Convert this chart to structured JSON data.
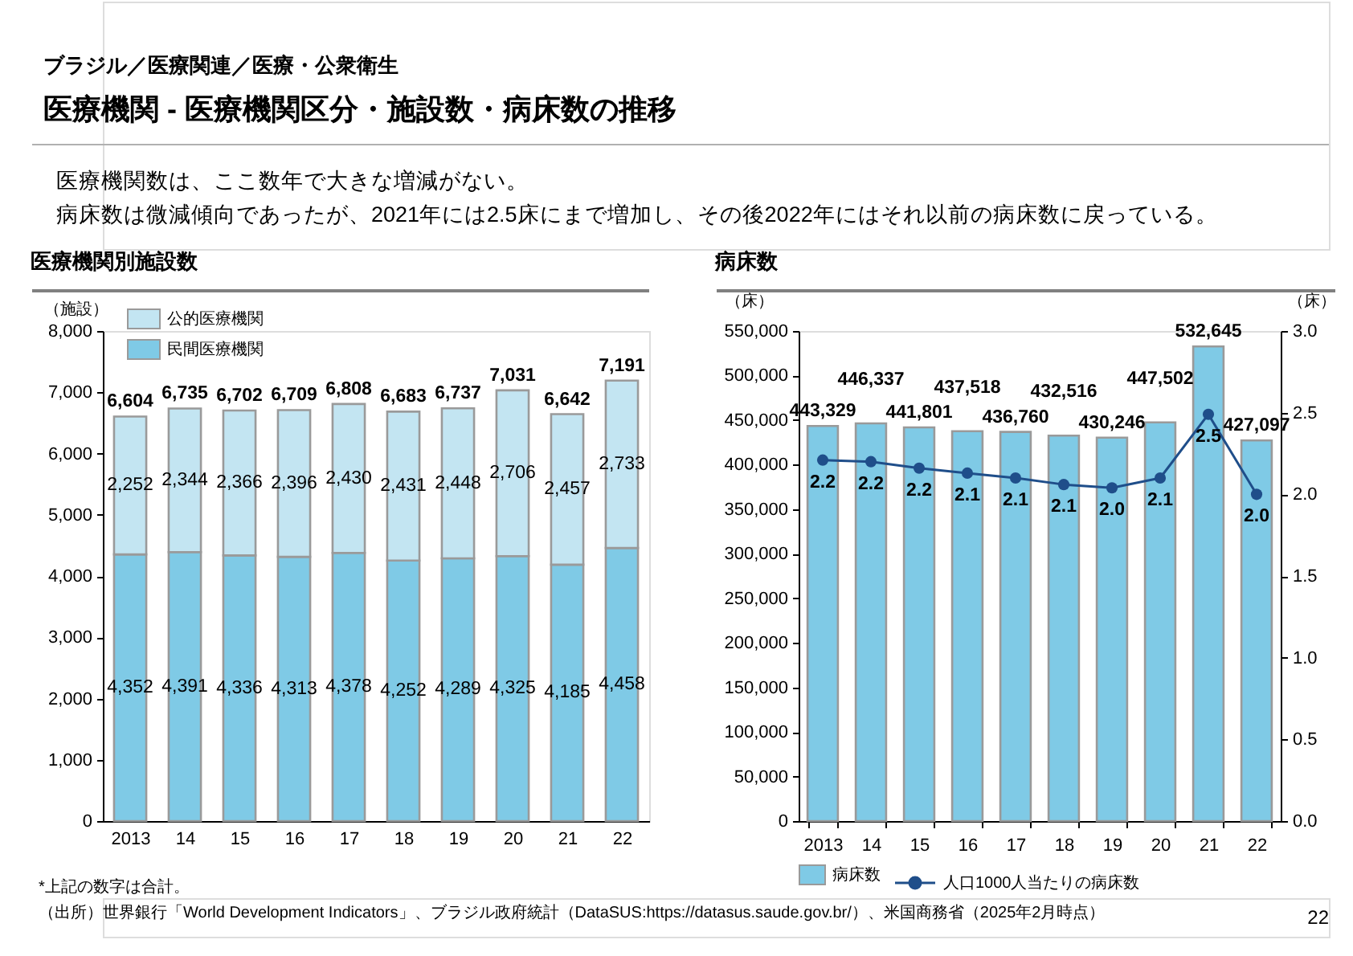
{
  "chart_data": [
    {
      "type": "bar",
      "stacked": true,
      "title": "医療機関別施設数",
      "ylabel": "（施設）",
      "categories": [
        "2013",
        "14",
        "15",
        "16",
        "17",
        "18",
        "19",
        "20",
        "21",
        "22"
      ],
      "series": [
        {
          "name": "民間医療機関",
          "color": "#7fcae6",
          "values": [
            4352,
            4391,
            4336,
            4313,
            4378,
            4252,
            4289,
            4325,
            4185,
            4458
          ],
          "value_labels": [
            "4,352",
            "4,391",
            "4,336",
            "4,313",
            "4,378",
            "4,252",
            "4,289",
            "4,325",
            "4,185",
            "4,458"
          ]
        },
        {
          "name": "公的医療機関",
          "color": "#c3e5f2",
          "values": [
            2252,
            2344,
            2366,
            2396,
            2430,
            2431,
            2448,
            2706,
            2457,
            2733
          ],
          "value_labels": [
            "2,252",
            "2,344",
            "2,366",
            "2,396",
            "2,430",
            "2,431",
            "2,448",
            "2,706",
            "2,457",
            "2,733"
          ]
        }
      ],
      "totals": [
        "6,604",
        "6,735",
        "6,702",
        "6,709",
        "6,808",
        "6,683",
        "6,737",
        "7,031",
        "6,642",
        "7,191"
      ],
      "ylim": [
        0,
        8000
      ],
      "yticks": [
        0,
        {
          "value": 1000,
          "label": "1,000"
        },
        {
          "value": 2000,
          "label": "2,000"
        },
        {
          "value": 3000,
          "label": "3,000"
        },
        {
          "value": 4000,
          "label": "4,000"
        },
        {
          "value": 5000,
          "label": "5,000"
        },
        {
          "value": 6000,
          "label": "6,000"
        },
        {
          "value": 7000,
          "label": "7,000"
        },
        {
          "value": 8000,
          "label": "8,000"
        }
      ],
      "legend": "top left",
      "annotations": [
        "ブラジル／医療関連／医療・公衆衛生",
        "医療機関 - 医療機関区分・施設数・病床数の推移",
        "医療機関数は、ここ数年で大きな増減がない。",
        "病床数は微減傾向であったが、2021年には2.5床にまで増加し、その後2022年にはそれ以前の病床数に戻っている。",
        "*上記の数字は合計。"
      ]
    },
    {
      "type": "bar",
      "title": "病床数",
      "ylabel": "（床）",
      "y2label": "（床）",
      "categories": [
        "2013",
        "14",
        "15",
        "16",
        "17",
        "18",
        "19",
        "20",
        "21",
        "22"
      ],
      "series": [
        {
          "name": "病床数",
          "color": "#7fcae6",
          "values": [
            443329,
            446337,
            441801,
            437518,
            436760,
            432516,
            430246,
            447502,
            532645,
            427097
          ],
          "value_labels": [
            "443,329",
            "446,337",
            "441,801",
            "437,518",
            "436,760",
            "432,516",
            "430,246",
            "447,502",
            "532,645",
            "427,097"
          ]
        },
        {
          "name": "人口1000人当たりの病床数",
          "type": "line",
          "axis": "y2",
          "color": "#1f4e8a",
          "values": [
            2.21,
            2.2,
            2.16,
            2.13,
            2.1,
            2.06,
            2.04,
            2.1,
            2.49,
            2.0
          ],
          "value_labels": [
            "2.2",
            "2.2",
            "2.2",
            "2.1",
            "2.1",
            "2.1",
            "2.0",
            "2.1",
            "2.5",
            "2.0"
          ]
        }
      ],
      "ylim": [
        0,
        550000
      ],
      "yticks": [
        0,
        {
          "value": 50000,
          "label": "50,000"
        },
        {
          "value": 100000,
          "label": "100,000"
        },
        {
          "value": 150000,
          "label": "150,000"
        },
        {
          "value": 200000,
          "label": "200,000"
        },
        {
          "value": 250000,
          "label": "250,000"
        },
        {
          "value": 300000,
          "label": "300,000"
        },
        {
          "value": 350000,
          "label": "350,000"
        },
        {
          "value": 400000,
          "label": "400,000"
        },
        {
          "value": 450000,
          "label": "450,000"
        },
        {
          "value": 500000,
          "label": "500,000"
        },
        {
          "value": 550000,
          "label": "550,000"
        }
      ],
      "y2lim": [
        0,
        3
      ],
      "y2ticks": [
        {
          "value": 0,
          "label": "0.0"
        },
        0.5,
        {
          "value": 1,
          "label": "1.0"
        },
        1.5,
        {
          "value": 2,
          "label": "2.0"
        },
        2.5,
        {
          "value": 3,
          "label": "3.0"
        }
      ],
      "marker": "circle",
      "legend": "bottom",
      "annotations": [
        "（出所）世界銀行「World Development Indicators」、ブラジル政府統計（DataSUS:https://datasus.saude.gov.br/）、米国商務省（2025年2月時点）",
        "22"
      ]
    }
  ]
}
